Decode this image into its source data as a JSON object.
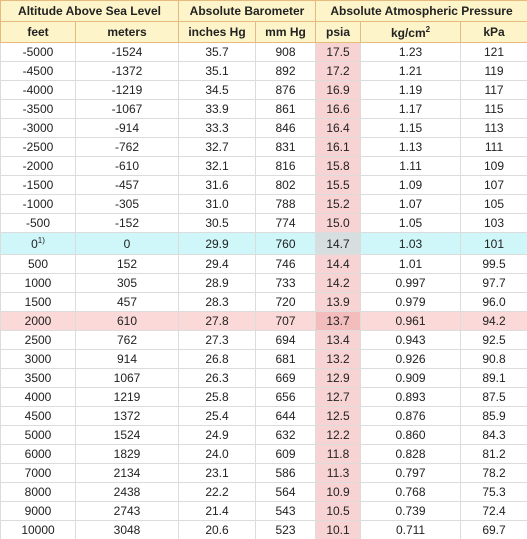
{
  "header": {
    "groups": [
      "Altitude Above Sea Level",
      "Absolute Barometer",
      "Absolute Atmospheric Pressure"
    ],
    "columns": [
      "feet",
      "meters",
      "inches Hg",
      "mm Hg",
      "psia",
      {
        "text": "kg/cm",
        "sup": "2"
      },
      "kPa"
    ]
  },
  "table": {
    "rows": [
      [
        "-5000",
        "-1524",
        "35.7",
        "908",
        "17.5",
        "1.23",
        "121"
      ],
      [
        "-4500",
        "-1372",
        "35.1",
        "892",
        "17.2",
        "1.21",
        "119"
      ],
      [
        "-4000",
        "-1219",
        "34.5",
        "876",
        "16.9",
        "1.19",
        "117"
      ],
      [
        "-3500",
        "-1067",
        "33.9",
        "861",
        "16.6",
        "1.17",
        "115"
      ],
      [
        "-3000",
        "-914",
        "33.3",
        "846",
        "16.4",
        "1.15",
        "113"
      ],
      [
        "-2500",
        "-762",
        "32.7",
        "831",
        "16.1",
        "1.13",
        "111"
      ],
      [
        "-2000",
        "-610",
        "32.1",
        "816",
        "15.8",
        "1.11",
        "109"
      ],
      [
        "-1500",
        "-457",
        "31.6",
        "802",
        "15.5",
        "1.09",
        "107"
      ],
      [
        "-1000",
        "-305",
        "31.0",
        "788",
        "15.2",
        "1.07",
        "105"
      ],
      [
        "-500",
        "-152",
        "30.5",
        "774",
        "15.0",
        "1.05",
        "103"
      ],
      [
        {
          "text": "0",
          "sup": "1)"
        },
        "0",
        "29.9",
        "760",
        "14.7",
        "1.03",
        "101"
      ],
      [
        "500",
        "152",
        "29.4",
        "746",
        "14.4",
        "1.01",
        "99.5"
      ],
      [
        "1000",
        "305",
        "28.9",
        "733",
        "14.2",
        "0.997",
        "97.7"
      ],
      [
        "1500",
        "457",
        "28.3",
        "720",
        "13.9",
        "0.979",
        "96.0"
      ],
      [
        "2000",
        "610",
        "27.8",
        "707",
        "13.7",
        "0.961",
        "94.2"
      ],
      [
        "2500",
        "762",
        "27.3",
        "694",
        "13.4",
        "0.943",
        "92.5"
      ],
      [
        "3000",
        "914",
        "26.8",
        "681",
        "13.2",
        "0.926",
        "90.8"
      ],
      [
        "3500",
        "1067",
        "26.3",
        "669",
        "12.9",
        "0.909",
        "89.1"
      ],
      [
        "4000",
        "1219",
        "25.8",
        "656",
        "12.7",
        "0.893",
        "87.5"
      ],
      [
        "4500",
        "1372",
        "25.4",
        "644",
        "12.5",
        "0.876",
        "85.9"
      ],
      [
        "5000",
        "1524",
        "24.9",
        "632",
        "12.2",
        "0.860",
        "84.3"
      ],
      [
        "6000",
        "1829",
        "24.0",
        "609",
        "11.8",
        "0.828",
        "81.2"
      ],
      [
        "7000",
        "2134",
        "23.1",
        "586",
        "11.3",
        "0.797",
        "78.2"
      ],
      [
        "8000",
        "2438",
        "22.2",
        "564",
        "10.9",
        "0.768",
        "75.3"
      ],
      [
        "9000",
        "2743",
        "21.4",
        "543",
        "10.5",
        "0.739",
        "72.4"
      ],
      [
        "10000",
        "3048",
        "20.6",
        "523",
        "10.1",
        "0.711",
        "69.7"
      ]
    ]
  }
}
